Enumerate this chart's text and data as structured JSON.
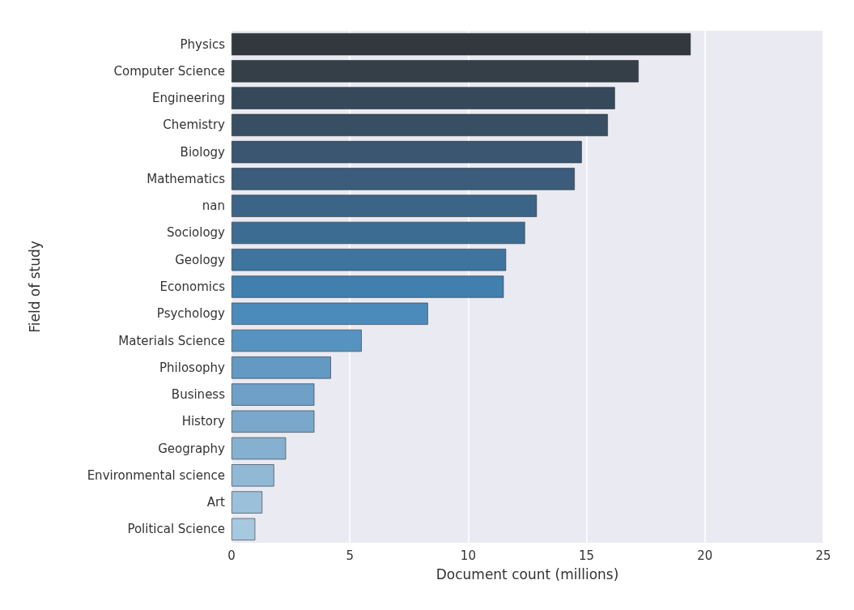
{
  "chart_data": {
    "type": "bar",
    "orientation": "horizontal",
    "xlabel": "Document count (millions)",
    "ylabel": "Field of study",
    "categories": [
      "Physics",
      "Computer Science",
      "Engineering",
      "Chemistry",
      "Biology",
      "Mathematics",
      "nan",
      "Sociology",
      "Geology",
      "Economics",
      "Psychology",
      "Materials Science",
      "Philosophy",
      "Business",
      "History",
      "Geography",
      "Environmental science",
      "Art",
      "Political Science"
    ],
    "values": [
      19.4,
      17.2,
      16.2,
      15.9,
      14.8,
      14.5,
      12.9,
      12.4,
      11.6,
      11.5,
      8.3,
      5.5,
      4.2,
      3.5,
      3.5,
      2.3,
      1.8,
      1.3,
      1.0
    ],
    "colors": [
      "#32383e",
      "#343f48",
      "#36495a",
      "#384f63",
      "#3a5670",
      "#3b5c7a",
      "#3c6486",
      "#3d6c92",
      "#3e749e",
      "#417fae",
      "#4a8bbb",
      "#5693c1",
      "#6399c3",
      "#6fa0c7",
      "#7aa8cc",
      "#86b0d0",
      "#91b9d6",
      "#9bc0da",
      "#a7c9e0"
    ],
    "xlim": [
      0,
      25
    ],
    "xticks": [
      0,
      5,
      10,
      15,
      20,
      25
    ],
    "grid": "x"
  }
}
